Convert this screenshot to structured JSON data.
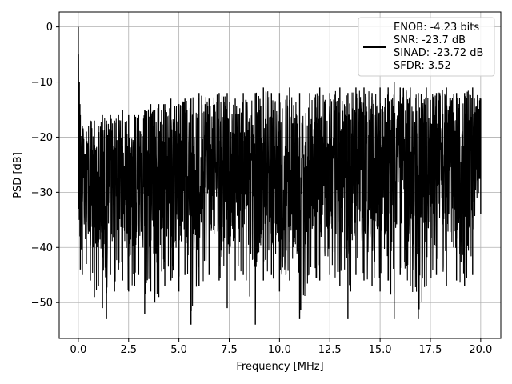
{
  "chart_data": {
    "type": "line",
    "title": "",
    "xlabel": "Frequency [MHz]",
    "ylabel": "PSD [dB]",
    "xlim": [
      -0.95,
      21.0
    ],
    "ylim": [
      -56.5,
      2.7
    ],
    "x_ticks": [
      0.0,
      2.5,
      5.0,
      7.5,
      10.0,
      12.5,
      15.0,
      17.5,
      20.0
    ],
    "x_tick_labels": [
      "0.0",
      "2.5",
      "5.0",
      "7.5",
      "10.0",
      "12.5",
      "15.0",
      "17.5",
      "20.0"
    ],
    "y_ticks": [
      0,
      -10,
      -20,
      -30,
      -40,
      -50
    ],
    "y_tick_labels": [
      "0",
      "−10",
      "−20",
      "−30",
      "−40",
      "−50"
    ],
    "grid": true,
    "line_color": "#000000",
    "legend": {
      "placement": "top-right",
      "entries": [
        "ENOB: -4.23 bits",
        "SNR: -23.7 dB",
        "SINAD: -23.72 dB",
        "SFDR: 3.52"
      ]
    },
    "series": [
      {
        "x": [
          0.0,
          0.01,
          0.02,
          0.03,
          0.05,
          0.08,
          0.1,
          0.2,
          0.4,
          0.6,
          0.8,
          1.0,
          1.2,
          1.4,
          1.6,
          1.8,
          2.0,
          2.2,
          2.5,
          2.8,
          3.0,
          3.3,
          3.6,
          3.8,
          4.0,
          4.3,
          4.6,
          5.0,
          5.3,
          5.6,
          6.0,
          6.5,
          7.0,
          7.4,
          7.8,
          8.2,
          8.8,
          9.2,
          9.6,
          10.0,
          10.5,
          11.0,
          11.5,
          12.0,
          12.5,
          13.0,
          13.4,
          13.8,
          14.2,
          14.6,
          15.0,
          15.4,
          15.7,
          16.0,
          16.5,
          16.9,
          17.3,
          17.8,
          18.3,
          18.8,
          19.2,
          19.6,
          20.0
        ],
        "upper": [
          0.0,
          -5,
          -12,
          -18,
          -10,
          -14,
          -16,
          -18,
          -19,
          -17,
          -17,
          -18,
          -16,
          -17,
          -16,
          -17,
          -16,
          -15,
          -16,
          -16,
          -16,
          -15,
          -14,
          -15,
          -14,
          -14,
          -13,
          -14,
          -13,
          -13,
          -12,
          -13,
          -12,
          -12,
          -13,
          -12,
          -12,
          -11,
          -12,
          -12,
          -11,
          -12,
          -12,
          -11,
          -12,
          -11,
          -12,
          -11,
          -11,
          -12,
          -11,
          -11,
          -10,
          -11,
          -11,
          -12,
          -11,
          -12,
          -11,
          -12,
          -12,
          -11,
          -13
        ],
        "lower": [
          -8,
          -20,
          -30,
          -33,
          -35,
          -38,
          -44,
          -45,
          -43,
          -46,
          -49,
          -47,
          -51,
          -53,
          -45,
          -48,
          -44,
          -46,
          -48,
          -47,
          -45,
          -52,
          -48,
          -50,
          -49,
          -47,
          -46,
          -48,
          -45,
          -54,
          -47,
          -45,
          -46,
          -51,
          -46,
          -45,
          -54,
          -46,
          -45,
          -48,
          -46,
          -53,
          -45,
          -46,
          -45,
          -47,
          -53,
          -45,
          -46,
          -47,
          -48,
          -46,
          -53,
          -45,
          -47,
          -53,
          -47,
          -45,
          -47,
          -46,
          -47,
          -45,
          -34
        ]
      }
    ]
  }
}
